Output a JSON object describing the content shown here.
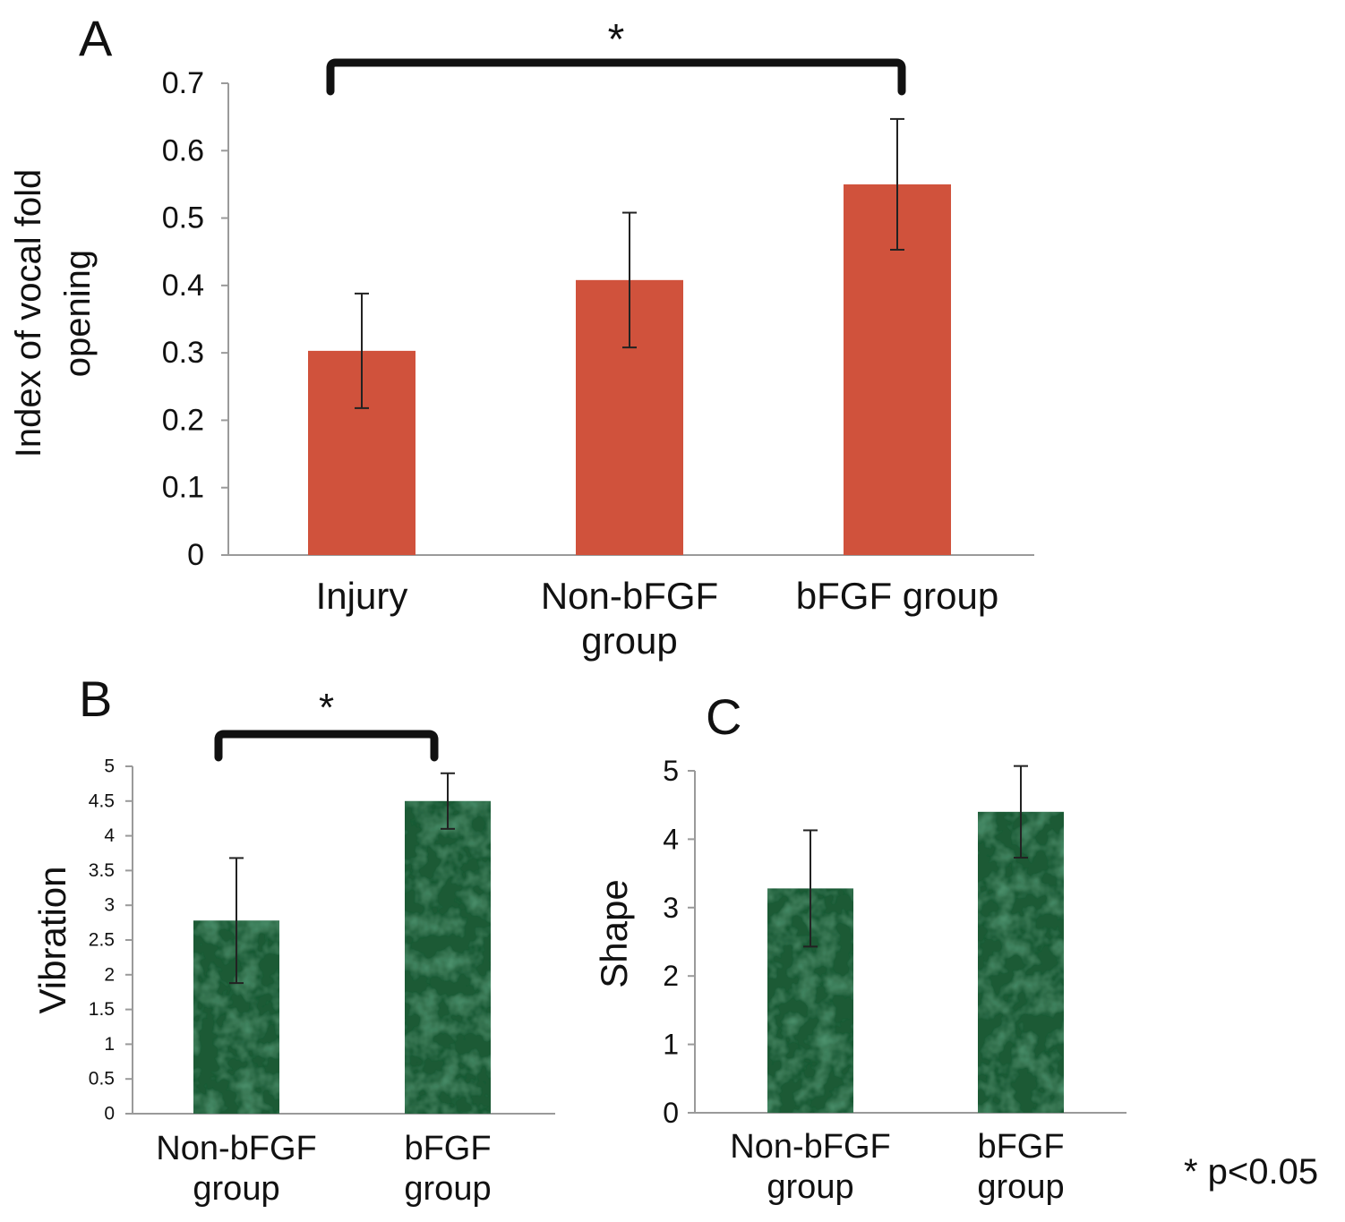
{
  "footnote": "* p<0.05",
  "colors": {
    "bar_a": "#d0523c",
    "bar_green": "#1e5a36",
    "bar_green_light": "#3f8a5a",
    "axis": "#9a9a9a",
    "text": "#111111"
  },
  "chart_data": [
    {
      "panel": "A",
      "type": "bar",
      "categories": [
        "Injury",
        "Non-bFGF group",
        "bFGF group"
      ],
      "category_lines": [
        [
          "Injury"
        ],
        [
          "Non-bFGF",
          "group"
        ],
        [
          "bFGF group"
        ]
      ],
      "values": [
        0.303,
        0.408,
        0.55
      ],
      "error": [
        0.085,
        0.1,
        0.097
      ],
      "ylabel_lines": [
        "Index of vocal fold",
        "opening"
      ],
      "ylim": [
        0,
        0.7
      ],
      "yticks": [
        0,
        0.1,
        0.2,
        0.3,
        0.4,
        0.5,
        0.6,
        0.7
      ],
      "ytick_labels": [
        "0",
        "0.1",
        "0.2",
        "0.3",
        "0.4",
        "0.5",
        "0.6",
        "0.7"
      ],
      "significance": {
        "from": 0,
        "to": 2,
        "mark": "*"
      },
      "grid": false
    },
    {
      "panel": "B",
      "type": "bar",
      "categories": [
        "Non-bFGF group",
        "bFGF group"
      ],
      "category_lines": [
        [
          "Non-bFGF",
          "group"
        ],
        [
          "bFGF",
          "group"
        ]
      ],
      "values": [
        2.78,
        4.5
      ],
      "error": [
        0.9,
        0.4
      ],
      "ylabel_lines": [
        "Vibration"
      ],
      "ylim": [
        0,
        5
      ],
      "yticks": [
        0,
        0.5,
        1,
        1.5,
        2,
        2.5,
        3,
        3.5,
        4,
        4.5,
        5
      ],
      "ytick_labels": [
        "0",
        "0.5",
        "1",
        "1.5",
        "2",
        "2.5",
        "3",
        "3.5",
        "4",
        "4.5",
        "5"
      ],
      "significance": {
        "from": 0,
        "to": 1,
        "mark": "*"
      },
      "grid": false
    },
    {
      "panel": "C",
      "type": "bar",
      "categories": [
        "Non-bFGF group",
        "bFGF group"
      ],
      "category_lines": [
        [
          "Non-bFGF",
          "group"
        ],
        [
          "bFGF",
          "group"
        ]
      ],
      "values": [
        3.28,
        4.4
      ],
      "error": [
        0.85,
        0.67
      ],
      "ylabel_lines": [
        "Shape"
      ],
      "ylim": [
        0,
        5
      ],
      "yticks": [
        0,
        1,
        2,
        3,
        4,
        5
      ],
      "ytick_labels": [
        "0",
        "1",
        "2",
        "3",
        "4",
        "5"
      ],
      "significance": null,
      "grid": false
    }
  ]
}
